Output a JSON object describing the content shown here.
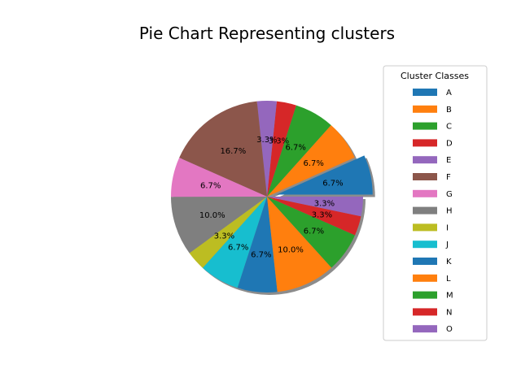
{
  "chart_data": {
    "type": "pie",
    "title": "Pie Chart Representing clusters",
    "legend_title": "Cluster Classes",
    "legend_position": "right",
    "shadow": true,
    "start_angle_deg": 0,
    "direction": "counterclockwise",
    "slices": [
      {
        "label": "A",
        "value": 6.7,
        "pct_label": "6.7%",
        "color": "#1f77b4",
        "exploded": true
      },
      {
        "label": "B",
        "value": 6.7,
        "pct_label": "6.7%",
        "color": "#ff7f0e"
      },
      {
        "label": "C",
        "value": 6.7,
        "pct_label": "6.7%",
        "color": "#2ca02c"
      },
      {
        "label": "D",
        "value": 3.3,
        "pct_label": "3.3%",
        "color": "#d62728"
      },
      {
        "label": "E",
        "value": 3.3,
        "pct_label": "3.3%",
        "color": "#9467bd"
      },
      {
        "label": "F",
        "value": 16.7,
        "pct_label": "16.7%",
        "color": "#8c564b"
      },
      {
        "label": "G",
        "value": 6.7,
        "pct_label": "6.7%",
        "color": "#e377c2"
      },
      {
        "label": "H",
        "value": 10.0,
        "pct_label": "10.0%",
        "color": "#7f7f7f"
      },
      {
        "label": "I",
        "value": 3.3,
        "pct_label": "3.3%",
        "color": "#bcbd22"
      },
      {
        "label": "J",
        "value": 6.7,
        "pct_label": "6.7%",
        "color": "#17becf"
      },
      {
        "label": "K",
        "value": 6.7,
        "pct_label": "6.7%",
        "color": "#1f77b4"
      },
      {
        "label": "L",
        "value": 10.0,
        "pct_label": "10.0%",
        "color": "#ff7f0e"
      },
      {
        "label": "M",
        "value": 6.7,
        "pct_label": "6.7%",
        "color": "#2ca02c"
      },
      {
        "label": "N",
        "value": 3.3,
        "pct_label": "3.3%",
        "color": "#d62728"
      },
      {
        "label": "O",
        "value": 3.3,
        "pct_label": "3.3%",
        "color": "#9467bd"
      }
    ]
  }
}
